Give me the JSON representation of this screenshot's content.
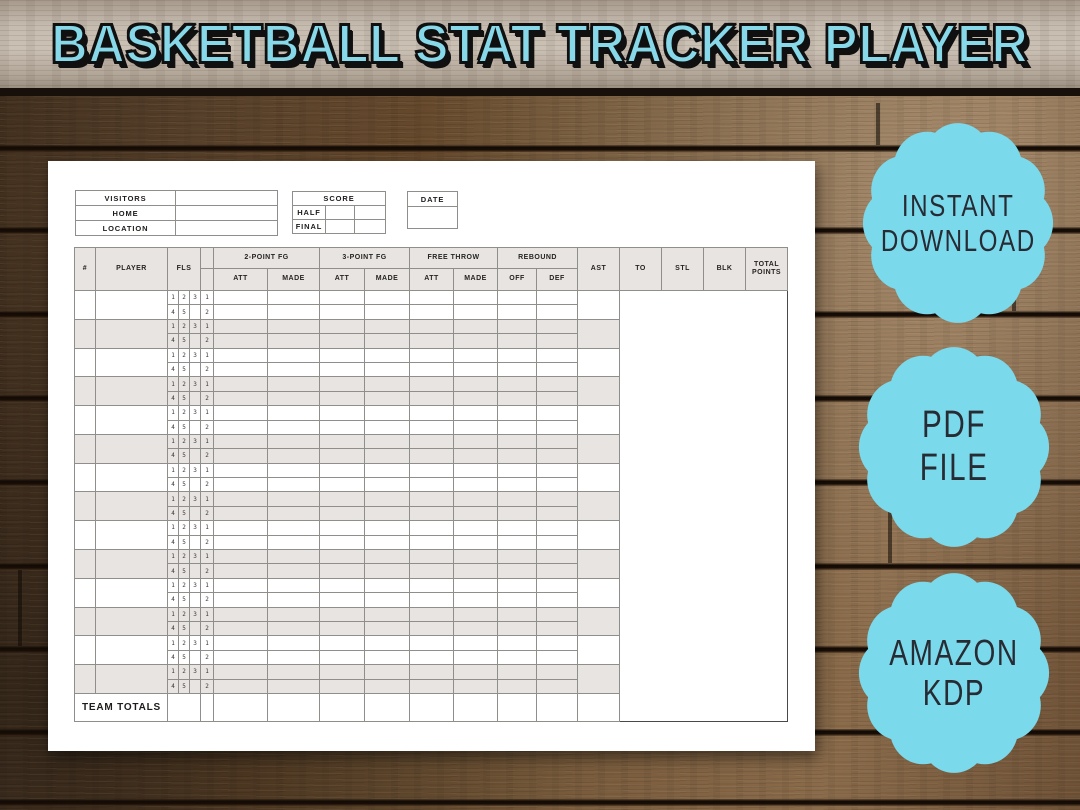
{
  "title": "BASKETBALL STAT TRACKER PLAYER",
  "badges": [
    {
      "line1": "INSTANT",
      "line2": "DOWNLOAD"
    },
    {
      "line1": "PDF",
      "line2": "FILE"
    },
    {
      "line1": "AMAZON",
      "line2": "KDP"
    }
  ],
  "scoresheet": {
    "info": {
      "visitors_label": "VISITORS",
      "home_label": "HOME",
      "location_label": "LOCATION",
      "score_label": "SCORE",
      "half_label": "HALF",
      "final_label": "FINAL",
      "date_label": "DATE"
    },
    "table": {
      "number_col": "#",
      "player_col": "PLAYER",
      "fouls_col": "FLS",
      "groups": [
        {
          "label": "2-POINT FG",
          "sub": [
            "ATT",
            "MADE"
          ]
        },
        {
          "label": "3-POINT FG",
          "sub": [
            "ATT",
            "MADE"
          ]
        },
        {
          "label": "FREE THROW",
          "sub": [
            "ATT",
            "MADE"
          ]
        },
        {
          "label": "REBOUND",
          "sub": [
            "OFF",
            "DEF"
          ]
        }
      ],
      "single_cols": [
        "AST",
        "TO",
        "STL",
        "BLK"
      ],
      "total_col": "TOTAL POINTS",
      "fouls_top": [
        "1",
        "2",
        "3"
      ],
      "fouls_bottom": [
        "4",
        "5",
        ""
      ],
      "period_top": "1",
      "period_bottom": "2",
      "player_rows": 14,
      "team_totals_label": "TEAM TOTALS"
    }
  },
  "colors": {
    "accent_blue": "#7bd9ec",
    "title_blue": "#87d8e9",
    "row_gray": "#e7e4e1",
    "paper_white": "#ffffff"
  }
}
